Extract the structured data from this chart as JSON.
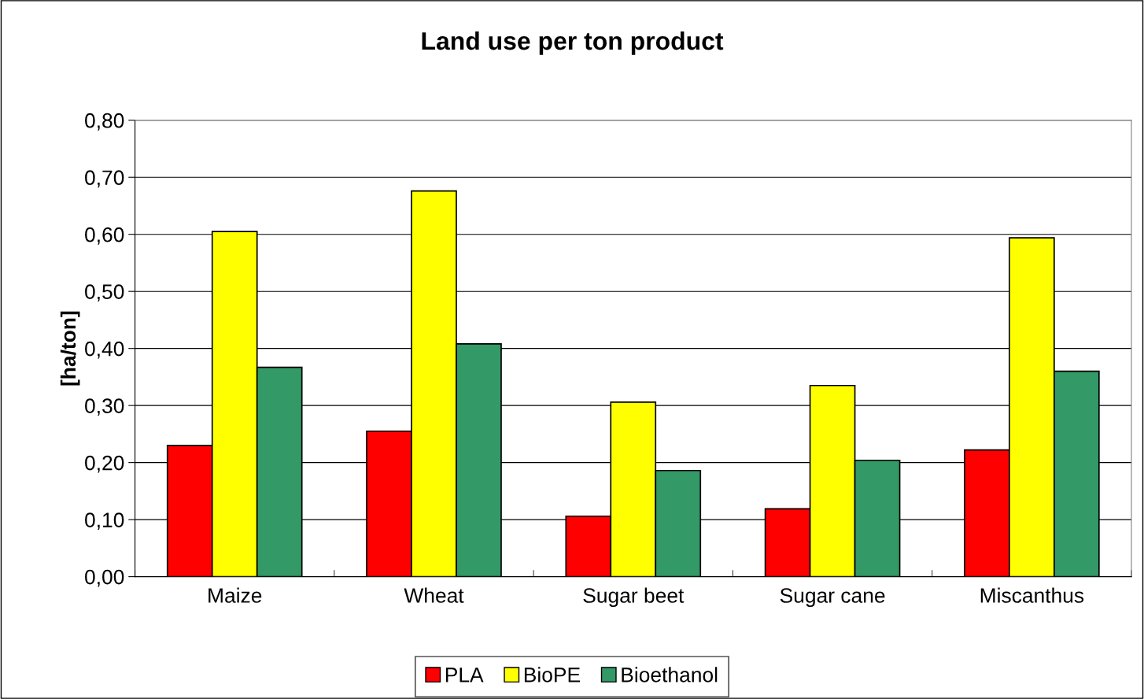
{
  "chart_data": {
    "type": "bar",
    "title": "Land use per ton product",
    "ylabel": "[ha/ton]",
    "categories": [
      "Maize",
      "Wheat",
      "Sugar beet",
      "Sugar cane",
      "Miscanthus"
    ],
    "series": [
      {
        "name": "PLA",
        "color": "#ff0000",
        "values": [
          0.23,
          0.255,
          0.106,
          0.119,
          0.222
        ]
      },
      {
        "name": "BioPE",
        "color": "#ffff00",
        "values": [
          0.605,
          0.676,
          0.306,
          0.335,
          0.594
        ]
      },
      {
        "name": "Bioethanol",
        "color": "#339966",
        "values": [
          0.367,
          0.408,
          0.186,
          0.204,
          0.36
        ]
      }
    ],
    "ylim": [
      0,
      0.8
    ],
    "yticks": [
      {
        "value": 0,
        "label": "0,00"
      },
      {
        "value": 0.1,
        "label": "0,10"
      },
      {
        "value": 0.2,
        "label": "0,20"
      },
      {
        "value": 0.3,
        "label": "0,30"
      },
      {
        "value": 0.4,
        "label": "0,40"
      },
      {
        "value": 0.5,
        "label": "0,50"
      },
      {
        "value": 0.6,
        "label": "0,60"
      },
      {
        "value": 0.7,
        "label": "0,70"
      },
      {
        "value": 0.8,
        "label": "0,80"
      }
    ],
    "grid": "y",
    "legend": "bottom"
  }
}
